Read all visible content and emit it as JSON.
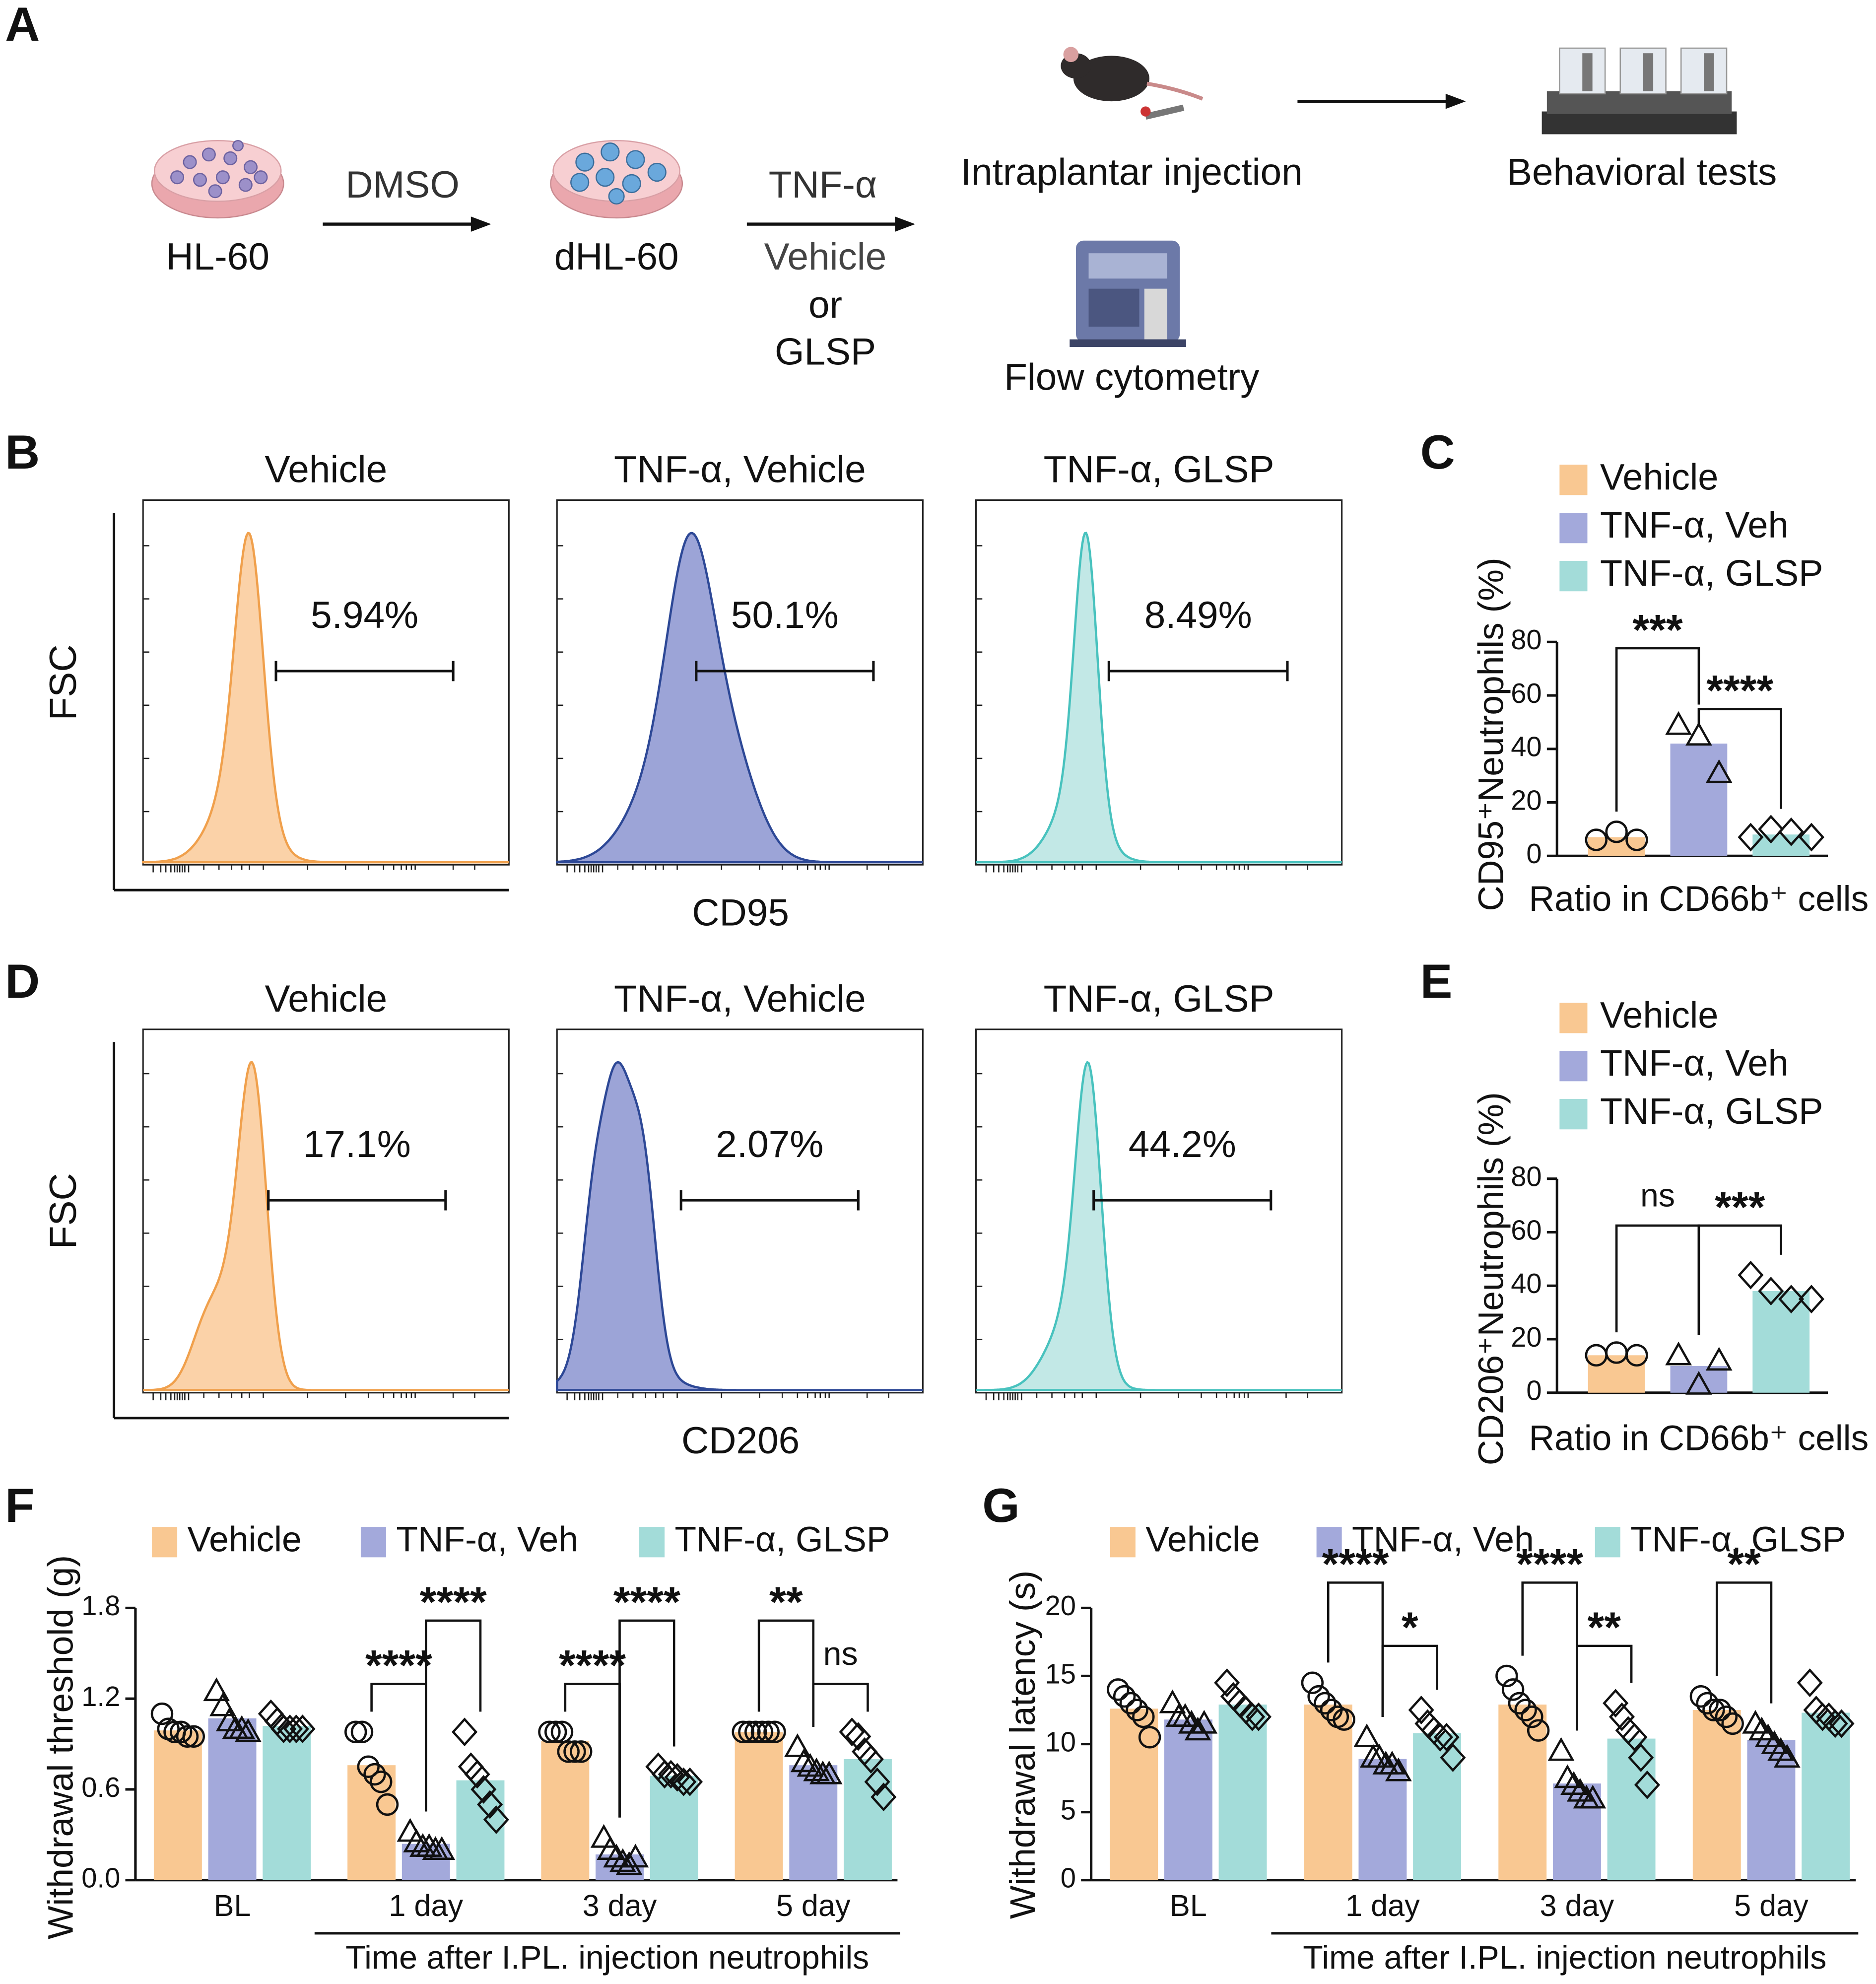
{
  "panel_labels": [
    "A",
    "B",
    "C",
    "D",
    "E",
    "F",
    "G"
  ],
  "schematic": {
    "cell_line": "HL-60",
    "inducer": "DMSO",
    "differentiated": "dHL-60",
    "stimulus": "TNF-α",
    "treatment": [
      "Vehicle",
      "or",
      "GLSP"
    ],
    "injection": "Intraplantar injection",
    "cytometry": "Flow cytometry",
    "behavior": "Behavioral tests"
  },
  "flow": [
    {
      "y_label": "FSC",
      "x_label": "CD95",
      "plots": [
        {
          "title": "Vehicle",
          "gate": "5.94%",
          "fill": "#fbd2a8",
          "line": "#f0a04c"
        },
        {
          "title": "TNF-α, Vehicle",
          "gate": "50.1%",
          "fill": "#9ca4d7",
          "line": "#2d4896"
        },
        {
          "title": "TNF-α, GLSP",
          "gate": "8.49%",
          "fill": "#c2e8e6",
          "line": "#48c2be"
        }
      ]
    },
    {
      "y_label": "FSC",
      "x_label": "CD206",
      "plots": [
        {
          "title": "Vehicle",
          "gate": "17.1%",
          "fill": "#fbd2a8",
          "line": "#f0a04c"
        },
        {
          "title": "TNF-α, Vehicle",
          "gate": "2.07%",
          "fill": "#9ca4d7",
          "line": "#2d4896"
        },
        {
          "title": "TNF-α, GLSP",
          "gate": "44.2%",
          "fill": "#c2e8e6",
          "line": "#48c2be"
        }
      ]
    }
  ],
  "chart_data": [
    {
      "type": "bar",
      "y_label": "CD95⁺Neutrophils (%)",
      "x_label": "Ratio in CD66b⁺ cells",
      "categories": [
        null
      ],
      "ylim": [
        0,
        80
      ],
      "yticks": [
        0,
        20,
        40,
        60,
        80
      ],
      "series": [
        {
          "name": "Vehicle",
          "color": "#f9c892",
          "marker": "circle",
          "values": [
            7
          ],
          "points": [
            [
              6,
              9,
              6
            ]
          ]
        },
        {
          "name": "TNF-α, Veh",
          "color": "#a3a9db",
          "marker": "triangle",
          "values": [
            42
          ],
          "points": [
            [
              49,
              45,
              31
            ]
          ]
        },
        {
          "name": "TNF-α, GLSP",
          "color": "#a3dcd9",
          "marker": "diamond",
          "values": [
            8
          ],
          "points": [
            [
              7,
              10,
              9,
              7
            ]
          ]
        }
      ],
      "annotations": [
        {
          "text": "***",
          "category": 0,
          "from": 0,
          "to": 1
        },
        {
          "text": "****",
          "category": 0,
          "from": 1,
          "to": 2
        }
      ]
    },
    {
      "type": "bar",
      "y_label": "CD206⁺Neutrophils (%)",
      "x_label": "Ratio in CD66b⁺ cells",
      "categories": [
        null
      ],
      "ylim": [
        0,
        80
      ],
      "yticks": [
        0,
        20,
        40,
        60,
        80
      ],
      "series": [
        {
          "name": "Vehicle",
          "color": "#f9c892",
          "marker": "circle",
          "values": [
            14
          ],
          "points": [
            [
              14,
              15,
              14
            ]
          ]
        },
        {
          "name": "TNF-α, Veh",
          "color": "#a3a9db",
          "marker": "triangle",
          "values": [
            10
          ],
          "points": [
            [
              14,
              3,
              12
            ]
          ]
        },
        {
          "name": "TNF-α, GLSP",
          "color": "#a3dcd9",
          "marker": "diamond",
          "values": [
            38
          ],
          "points": [
            [
              44,
              38,
              35,
              35
            ]
          ]
        }
      ],
      "annotations": [
        {
          "text": "ns",
          "category": 0,
          "from": 0,
          "to": 1
        },
        {
          "text": "***",
          "category": 0,
          "from": 1,
          "to": 2
        }
      ]
    },
    {
      "type": "bar",
      "y_label": "Withdrawal threshold (g)",
      "x_group_label": "Time after I.PL. injection neutrophils",
      "categories": [
        "BL",
        "1 day",
        "3 day",
        "5 day"
      ],
      "ylim": [
        0,
        1.8
      ],
      "yticks": [
        {
          "value": 0,
          "label": "0.0"
        },
        0.6,
        1.2,
        1.8
      ],
      "series": [
        {
          "name": "Vehicle",
          "color": "#f9c892",
          "marker": "circle",
          "values": [
            0.99,
            0.76,
            0.92,
            0.98
          ],
          "points": [
            [
              1.1,
              1.0,
              0.98,
              0.98,
              0.95,
              0.95
            ],
            [
              0.98,
              0.98,
              0.75,
              0.7,
              0.65,
              0.5
            ],
            [
              0.98,
              0.98,
              0.98,
              0.85,
              0.85,
              0.85
            ],
            [
              0.98,
              0.98,
              0.98,
              0.98,
              0.98,
              0.98
            ]
          ]
        },
        {
          "name": "TNF-α, Veh",
          "color": "#a3a9db",
          "marker": "triangle",
          "values": [
            1.07,
            0.24,
            0.17,
            0.76
          ],
          "points": [
            [
              1.25,
              1.15,
              1.05,
              1.0,
              1.0,
              0.98
            ],
            [
              0.32,
              0.25,
              0.22,
              0.22,
              0.2,
              0.2
            ],
            [
              0.28,
              0.2,
              0.15,
              0.12,
              0.1,
              0.15
            ],
            [
              0.88,
              0.78,
              0.75,
              0.72,
              0.7,
              0.7
            ]
          ]
        },
        {
          "name": "TNF-α, GLSP",
          "color": "#a3dcd9",
          "marker": "diamond",
          "values": [
            1.02,
            0.66,
            0.69,
            0.8
          ],
          "points": [
            [
              1.1,
              1.05,
              1.0,
              1.0,
              1.0,
              1.0
            ],
            [
              0.98,
              0.75,
              0.7,
              0.6,
              0.5,
              0.4
            ],
            [
              0.75,
              0.7,
              0.7,
              0.68,
              0.65,
              0.65
            ],
            [
              0.98,
              0.95,
              0.85,
              0.8,
              0.65,
              0.55
            ]
          ]
        }
      ],
      "annotations": [
        {
          "text": "****",
          "category": 1,
          "from": 0,
          "to": 1
        },
        {
          "text": "****",
          "category": 1,
          "from": 1,
          "to": 2
        },
        {
          "text": "****",
          "category": 2,
          "from": 0,
          "to": 1
        },
        {
          "text": "****",
          "category": 2,
          "from": 1,
          "to": 2
        },
        {
          "text": "**",
          "category": 3,
          "from": 0,
          "to": 1
        },
        {
          "text": "ns",
          "category": 3,
          "from": 1,
          "to": 2
        }
      ]
    },
    {
      "type": "bar",
      "y_label": "Withdrawal latency (s)",
      "x_group_label": "Time after I.PL. injection neutrophils",
      "categories": [
        "BL",
        "1 day",
        "3 day",
        "5 day"
      ],
      "ylim": [
        0,
        20
      ],
      "yticks": [
        0,
        5,
        10,
        15,
        20
      ],
      "series": [
        {
          "name": "Vehicle",
          "color": "#f9c892",
          "marker": "circle",
          "values": [
            12.6,
            12.9,
            12.9,
            12.5
          ],
          "points": [
            [
              14,
              13.5,
              13,
              12.5,
              12,
              10.5
            ],
            [
              14.5,
              13.5,
              13,
              12.5,
              12,
              11.8
            ],
            [
              15,
              14,
              13,
              12.5,
              12,
              11
            ],
            [
              13.5,
              13,
              12.5,
              12.5,
              12,
              11.5
            ]
          ]
        },
        {
          "name": "TNF-α, Veh",
          "color": "#a3a9db",
          "marker": "triangle",
          "values": [
            11.8,
            8.9,
            7.1,
            10.3
          ],
          "points": [
            [
              13,
              12,
              12,
              11.5,
              11,
              11.5
            ],
            [
              10.5,
              9,
              9,
              8.5,
              8.5,
              8
            ],
            [
              9.5,
              7.5,
              7,
              6.5,
              6,
              6
            ],
            [
              11.5,
              11,
              10.5,
              10,
              9.5,
              9
            ]
          ]
        },
        {
          "name": "TNF-α, GLSP",
          "color": "#a3dcd9",
          "marker": "diamond",
          "values": [
            12.9,
            10.8,
            10.4,
            12.3
          ],
          "points": [
            [
              14.5,
              13.5,
              13,
              12.5,
              12,
              12
            ],
            [
              12.5,
              11.5,
              11,
              10.5,
              10.5,
              9
            ],
            [
              13,
              12,
              11,
              10.5,
              9,
              7
            ],
            [
              14.5,
              12.5,
              12,
              12,
              11.5,
              11.5
            ]
          ]
        }
      ],
      "annotations": [
        {
          "text": "****",
          "category": 1,
          "from": 0,
          "to": 1
        },
        {
          "text": "*",
          "category": 1,
          "from": 1,
          "to": 2
        },
        {
          "text": "****",
          "category": 2,
          "from": 0,
          "to": 1
        },
        {
          "text": "**",
          "category": 2,
          "from": 1,
          "to": 2
        },
        {
          "text": "**",
          "category": 3,
          "from": 0,
          "to": 1
        }
      ]
    }
  ]
}
